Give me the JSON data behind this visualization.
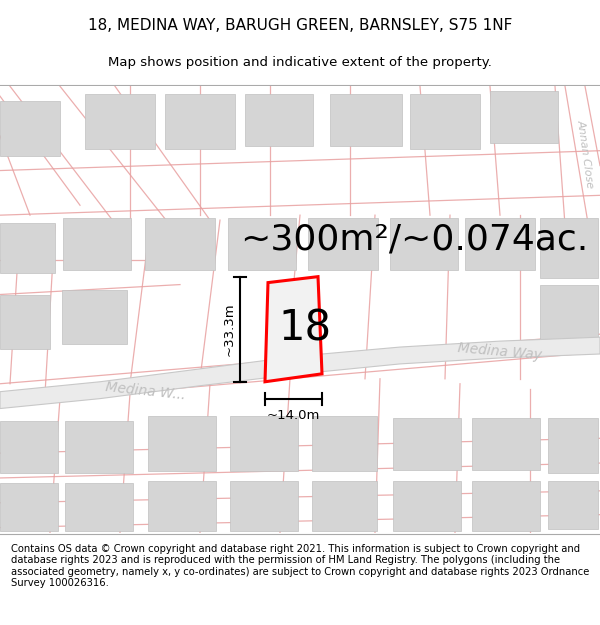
{
  "title": "18, MEDINA WAY, BARUGH GREEN, BARNSLEY, S75 1NF",
  "subtitle": "Map shows position and indicative extent of the property.",
  "footer": "Contains OS data © Crown copyright and database right 2021. This information is subject to Crown copyright and database rights 2023 and is reproduced with the permission of HM Land Registry. The polygons (including the associated geometry, namely x, y co-ordinates) are subject to Crown copyright and database rights 2023 Ordnance Survey 100026316.",
  "area_label": "~300m²/~0.074ac.",
  "number_label": "18",
  "dim_height": "~33.3m",
  "dim_width": "~14.0m",
  "street_label_1": "Medina W...",
  "street_label_diag": "Medina Way",
  "street_label_right": "Medina Way",
  "annan_close": "Annan Close",
  "bg_color": "#ffffff",
  "road_line_color": "#e8a0a0",
  "plot_color": "#ff0000",
  "text_color": "#000000",
  "street_text_color": "#c0c0c0",
  "dim_color": "#000000",
  "title_fontsize": 11,
  "subtitle_fontsize": 9.5,
  "footer_fontsize": 7.2,
  "area_fontsize": 26,
  "number_fontsize": 30,
  "dim_fontsize": 9.5,
  "street_fontsize": 10
}
